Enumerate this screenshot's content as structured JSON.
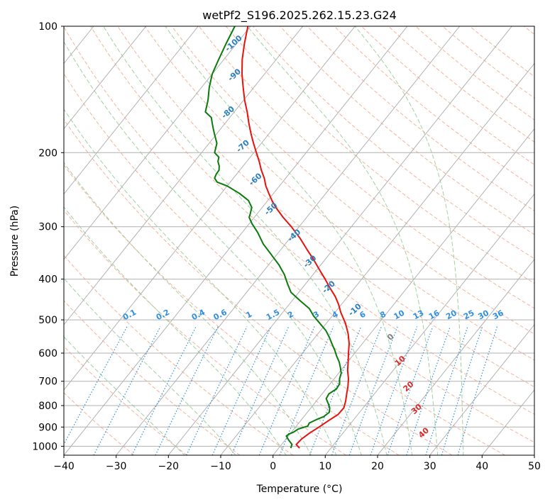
{
  "chart_data": {
    "type": "skewt",
    "title": "wetPf2_S196.2025.262.15.23.G24",
    "xlabel": "Temperature (°C)",
    "ylabel": "Pressure (hPa)",
    "xlim": [
      -40,
      50
    ],
    "ylim": [
      1050,
      100
    ],
    "x_ticks": [
      -40,
      -30,
      -20,
      -10,
      0,
      10,
      20,
      30,
      40,
      50
    ],
    "x_tick_labels": [
      "−40",
      "−30",
      "−20",
      "−10",
      "0",
      "10",
      "20",
      "30",
      "40",
      "50"
    ],
    "y_ticks": [
      1000,
      900,
      800,
      700,
      600,
      500,
      400,
      300,
      200,
      100
    ],
    "y_tick_labels": [
      "1000",
      "900",
      "800",
      "700",
      "600",
      "500",
      "400",
      "300",
      "200",
      "100"
    ],
    "grid": true,
    "colors": {
      "temperature": "#e8120c",
      "dewpoint": "#0a7a0a",
      "dry_adiabat": "#f5a48a",
      "moist_adiabat": "#8fc98f",
      "mixing_ratio": "#2f8fe0",
      "wetbulb_label": "#2a7fc0",
      "skew_label": "#d62a2a",
      "zero_label": "#808080",
      "grid": "#b0b0b0"
    },
    "temperature_profile": {
      "name": "Temperature",
      "pressure": [
        1010,
        990,
        960,
        930,
        900,
        870,
        840,
        810,
        780,
        750,
        720,
        690,
        660,
        630,
        600,
        570,
        540,
        510,
        480,
        460,
        440,
        420,
        400,
        380,
        360,
        340,
        320,
        300,
        285,
        270,
        260,
        250,
        240,
        230,
        220,
        210,
        200,
        190,
        180,
        170,
        160,
        150,
        140,
        130,
        120,
        110,
        100
      ],
      "temp": [
        4.0,
        2.8,
        3.0,
        3.6,
        4.5,
        5.3,
        6.2,
        6.3,
        5.6,
        4.7,
        3.8,
        2.7,
        1.3,
        0.1,
        -1.2,
        -2.5,
        -4.2,
        -6.3,
        -8.9,
        -10.5,
        -12.4,
        -14.7,
        -17.0,
        -19.5,
        -22.1,
        -25.0,
        -28.0,
        -31.5,
        -34.5,
        -37.4,
        -39.2,
        -40.9,
        -42.6,
        -44.1,
        -45.9,
        -47.6,
        -49.5,
        -51.5,
        -53.5,
        -55.5,
        -57.5,
        -59.8,
        -62.0,
        -64.3,
        -66.5,
        -68.5,
        -70.5
      ]
    },
    "dewpoint_profile": {
      "name": "Dewpoint",
      "pressure": [
        1010,
        990,
        965,
        945,
        935,
        925,
        910,
        895,
        880,
        865,
        850,
        830,
        810,
        790,
        770,
        750,
        730,
        710,
        690,
        670,
        650,
        630,
        610,
        590,
        570,
        550,
        530,
        510,
        490,
        470,
        450,
        430,
        410,
        390,
        370,
        350,
        330,
        310,
        295,
        285,
        280,
        270,
        260,
        250,
        240,
        235,
        230,
        225,
        220,
        215,
        210,
        205,
        200,
        190,
        180,
        175,
        170,
        165,
        160,
        150,
        140,
        130,
        120,
        110,
        100
      ],
      "dewpoint": [
        2.3,
        2.0,
        0.6,
        -0.4,
        -0.2,
        0.4,
        0.8,
        2.2,
        2.0,
        2.8,
        3.8,
        4.2,
        3.6,
        2.6,
        1.5,
        1.3,
        2.0,
        1.8,
        1.0,
        0.5,
        -0.5,
        -1.6,
        -3.0,
        -4.3,
        -5.8,
        -7.3,
        -9.0,
        -11.2,
        -13.5,
        -15.5,
        -18.5,
        -21.5,
        -23.5,
        -25.5,
        -28.0,
        -31.0,
        -34.2,
        -37.0,
        -39.5,
        -41.0,
        -41.3,
        -42.0,
        -43.7,
        -46.5,
        -50.0,
        -52.5,
        -53.6,
        -53.9,
        -54.0,
        -54.6,
        -55.5,
        -56.0,
        -57.5,
        -58.5,
        -60.5,
        -61.5,
        -62.5,
        -63.5,
        -65.5,
        -66.8,
        -68.5,
        -70.0,
        -71.0,
        -72.0,
        -73.0
      ]
    },
    "dry_adiabats_theta_C": [
      -30,
      -20,
      -10,
      0,
      10,
      20,
      30,
      40,
      50,
      60,
      70,
      80,
      90,
      100,
      110,
      120,
      130,
      140,
      150,
      160,
      170,
      180,
      190,
      200,
      220,
      240
    ],
    "moist_adiabats_C": [
      -20,
      -10,
      0,
      5,
      10,
      15,
      20,
      25,
      30,
      35
    ],
    "mixing_ratio_lines": [
      {
        "value": 0.1,
        "label": "0.1"
      },
      {
        "value": 0.2,
        "label": "0.2"
      },
      {
        "value": 0.4,
        "label": "0.4"
      },
      {
        "value": 0.6,
        "label": "0.6"
      },
      {
        "value": 1,
        "label": "1"
      },
      {
        "value": 1.5,
        "label": "1.5"
      },
      {
        "value": 2,
        "label": "2"
      },
      {
        "value": 3,
        "label": "3"
      },
      {
        "value": 4,
        "label": "4"
      },
      {
        "value": 6,
        "label": "6"
      },
      {
        "value": 8,
        "label": "8"
      },
      {
        "value": 10,
        "label": "10"
      },
      {
        "value": 13,
        "label": "13"
      },
      {
        "value": 16,
        "label": "16"
      },
      {
        "value": 20,
        "label": "20"
      },
      {
        "value": 25,
        "label": "25"
      },
      {
        "value": 30,
        "label": "30"
      },
      {
        "value": 36,
        "label": "36"
      }
    ],
    "wetbulb_zero_labels": [
      {
        "label": "-100",
        "pressure": 111,
        "temp": -70.0
      },
      {
        "label": "-90",
        "pressure": 132,
        "temp": -65.0
      },
      {
        "label": "-80",
        "pressure": 162,
        "temp": -60.5
      },
      {
        "label": "-70",
        "pressure": 195,
        "temp": -52.5
      },
      {
        "label": "-60",
        "pressure": 234,
        "temp": -45.0
      },
      {
        "label": "-50",
        "pressure": 275,
        "temp": -37.5
      },
      {
        "label": "-40",
        "pressure": 318,
        "temp": -29.0
      },
      {
        "label": "-30",
        "pressure": 367,
        "temp": -22.0
      },
      {
        "label": "-20",
        "pressure": 422,
        "temp": -14.5
      },
      {
        "label": "-10",
        "pressure": 478,
        "temp": -6.0
      }
    ],
    "skewed_isotherm_labels": [
      {
        "label": "0",
        "pressure": 555,
        "temp": 5.0,
        "kind": "zero"
      },
      {
        "label": "10",
        "pressure": 633,
        "temp": 10.5,
        "kind": "warm"
      },
      {
        "label": "20",
        "pressure": 728,
        "temp": 16.0,
        "kind": "warm"
      },
      {
        "label": "30",
        "pressure": 824,
        "temp": 21.0,
        "kind": "warm"
      },
      {
        "label": "40",
        "pressure": 938,
        "temp": 26.0,
        "kind": "warm"
      }
    ]
  }
}
